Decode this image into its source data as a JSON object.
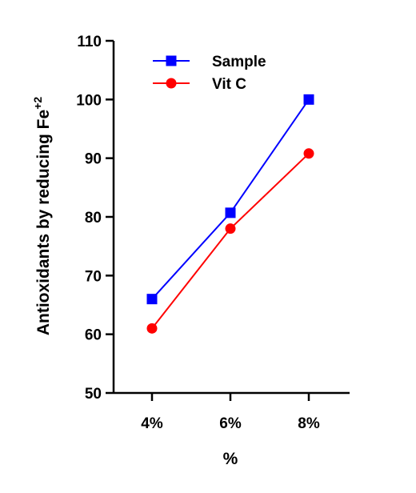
{
  "chart_data": {
    "type": "line",
    "title": "",
    "xlabel": "%",
    "ylabel": "Antioxidants by reducing Fe",
    "ylabel_superscript": "+2",
    "categories": [
      "4%",
      "6%",
      "8%"
    ],
    "ylim": [
      50,
      110
    ],
    "yticks": [
      50,
      60,
      70,
      80,
      90,
      100,
      110
    ],
    "grid": false,
    "legend_position": "top-left",
    "series": [
      {
        "name": "Sample",
        "values": [
          66,
          80.7,
          100
        ],
        "color": "#0000ff",
        "marker": "square"
      },
      {
        "name": "Vit C",
        "values": [
          61,
          78,
          90.8
        ],
        "color": "#ff0000",
        "marker": "circle"
      }
    ]
  }
}
